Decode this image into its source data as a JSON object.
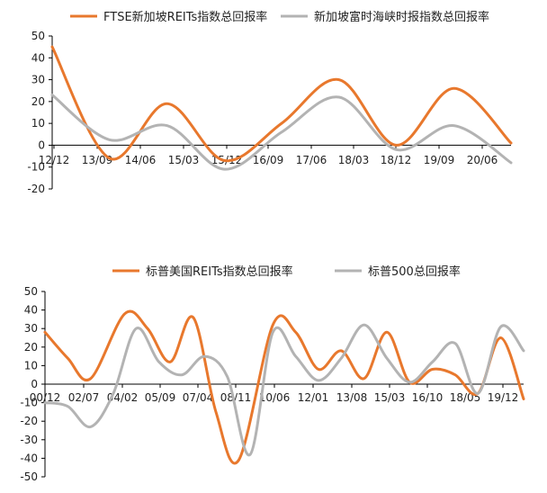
{
  "chart_data": [
    {
      "type": "line",
      "series": [
        {
          "name": "FTSE新加坡REITs指数总回报率",
          "color": "#E8782D",
          "points": [
            [
              0,
              45
            ],
            [
              1,
              -6
            ],
            [
              2,
              19
            ],
            [
              3,
              -7
            ],
            [
              4,
              10
            ],
            [
              5,
              30
            ],
            [
              6,
              0
            ],
            [
              7,
              26
            ],
            [
              8,
              1
            ]
          ]
        },
        {
          "name": "新加坡富时海峡时报指数总回报率",
          "color": "#B3B3B3",
          "points": [
            [
              0,
              23
            ],
            [
              1,
              2.5
            ],
            [
              2,
              9
            ],
            [
              3,
              -11
            ],
            [
              4,
              6
            ],
            [
              5,
              22
            ],
            [
              6,
              -2
            ],
            [
              7,
              9
            ],
            [
              8,
              -8
            ]
          ]
        }
      ],
      "x_tick_labels": [
        "12/12",
        "13/09",
        "14/06",
        "15/03",
        "15/12",
        "16/09",
        "17/06",
        "18/03",
        "18/12",
        "19/09",
        "20/06"
      ],
      "y_tick_labels": [
        "50",
        "40",
        "30",
        "20",
        "10",
        "0",
        "-10",
        "-20"
      ],
      "ylim": [
        -20,
        50
      ],
      "grid": false,
      "legend_position": "top"
    },
    {
      "type": "line",
      "series": [
        {
          "name": "标普美国REITs指数总回报率",
          "color": "#E8782D",
          "points": [
            [
              0,
              28
            ],
            [
              2,
              14
            ],
            [
              4,
              3
            ],
            [
              7,
              38
            ],
            [
              9,
              30
            ],
            [
              11,
              12
            ],
            [
              13,
              36
            ],
            [
              15,
              -15
            ],
            [
              17,
              -41
            ],
            [
              20,
              32
            ],
            [
              22,
              28
            ],
            [
              24,
              8
            ],
            [
              26,
              18
            ],
            [
              28,
              3
            ],
            [
              30,
              28
            ],
            [
              32,
              1
            ],
            [
              34,
              8
            ],
            [
              36,
              5
            ],
            [
              38,
              -5
            ],
            [
              40,
              25
            ],
            [
              42,
              -8
            ]
          ]
        },
        {
          "name": "标普500总回报率",
          "color": "#B3B3B3",
          "points": [
            [
              0,
              -10
            ],
            [
              2,
              -12
            ],
            [
              4,
              -23
            ],
            [
              6,
              -5
            ],
            [
              8,
              30
            ],
            [
              10,
              12
            ],
            [
              12,
              5
            ],
            [
              14,
              15
            ],
            [
              16,
              4
            ],
            [
              18,
              -38
            ],
            [
              20,
              28
            ],
            [
              22,
              15
            ],
            [
              24,
              2
            ],
            [
              26,
              14
            ],
            [
              28,
              32
            ],
            [
              30,
              14
            ],
            [
              32,
              1
            ],
            [
              34,
              12
            ],
            [
              36,
              22
            ],
            [
              38,
              -5
            ],
            [
              40,
              31
            ],
            [
              42,
              18
            ]
          ]
        }
      ],
      "x_tick_labels": [
        "00/12",
        "02/07",
        "04/02",
        "05/09",
        "07/04",
        "08/11",
        "10/06",
        "12/01",
        "13/08",
        "15/03",
        "16/10",
        "18/05",
        "19/12"
      ],
      "y_tick_labels": [
        "50",
        "40",
        "30",
        "20",
        "10",
        "0",
        "-10",
        "-20",
        "-30",
        "-40",
        "-50"
      ],
      "ylim": [
        -50,
        50
      ],
      "grid": false,
      "legend_position": "top"
    }
  ]
}
